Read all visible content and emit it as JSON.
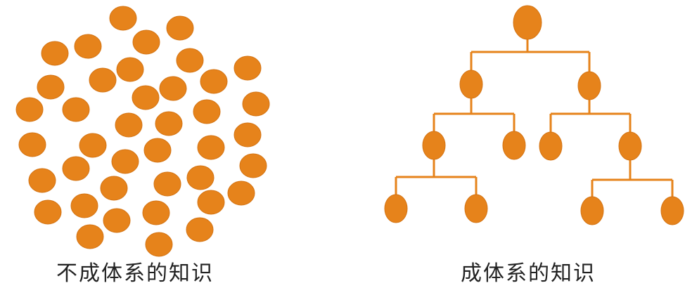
{
  "colors": {
    "node": "#E6831B",
    "node_stroke": "#D47414",
    "connector": "#E6831B",
    "text": "#222222",
    "background": "#FFFFFF"
  },
  "captions": {
    "unstructured": "不成体系的知识",
    "structured": "成体系的知识"
  },
  "unstructured_knowledge": {
    "node_count": 40
  },
  "structured_knowledge": {
    "tree": {
      "children": [
        {
          "children": [
            {
              "children": [
                {},
                {}
              ]
            },
            {}
          ]
        },
        {
          "children": [
            {},
            {
              "children": [
                {},
                {}
              ]
            }
          ]
        }
      ]
    }
  }
}
